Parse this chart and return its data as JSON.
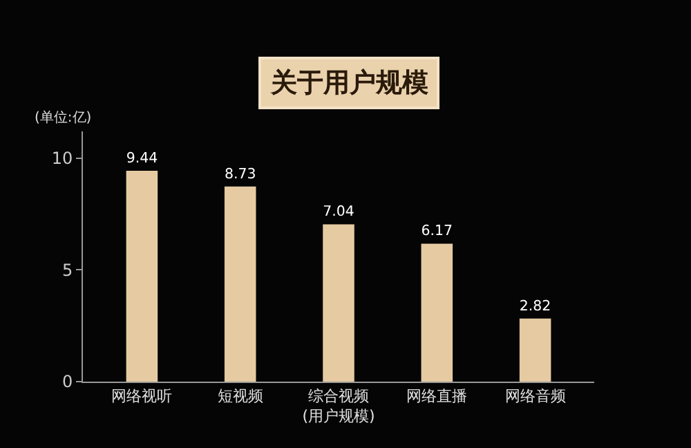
{
  "chart_data": {
    "type": "bar",
    "title": "关于用户规模",
    "ylabel": "(单位:亿)",
    "categories": [
      "网络视听",
      "短视频",
      "综合视频\n(用户规模)",
      "网络直播",
      "网络音频"
    ],
    "values": [
      9.44,
      8.73,
      7.04,
      6.17,
      2.82
    ],
    "color": "#e6cba2",
    "ylim": [
      0,
      11.2
    ],
    "yticks": [
      0,
      5,
      10
    ],
    "data_labels": true,
    "grid": false,
    "legend": false
  }
}
